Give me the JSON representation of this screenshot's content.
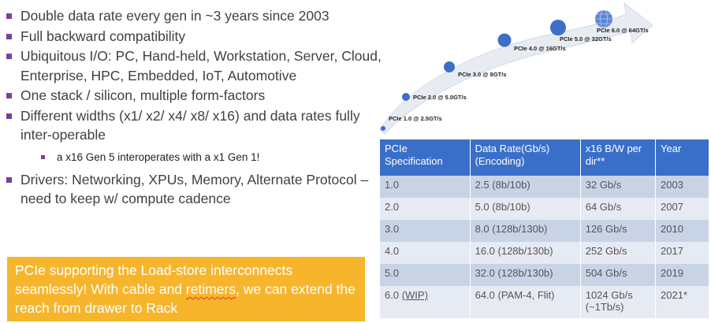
{
  "bullets": [
    "Double data rate every gen in ~3 years since 2003",
    "Full backward compatibility",
    "Ubiquitous I/O: PC, Hand-held, Workstation, Server, Cloud, Enterprise, HPC, Embedded, IoT, Automotive",
    "One stack / silicon, multiple form-factors",
    "Different widths (x1/ x2/ x4/ x8/ x16) and data rates fully inter-operable"
  ],
  "sub_bullet": "a x16 Gen 5 interoperates with a x1 Gen 1!",
  "drivers_bullet": "Drivers: Networking, XPUs, Memory, Alternate Protocol – need to keep w/ compute cadence",
  "callout": {
    "part1": "PCIe supporting the Load-store interconnects seamlessly! With cable and ",
    "squiggle": "retimers",
    "part2": ", we can extend the reach from drawer to Rack"
  },
  "roadmap": {
    "labels": [
      "PCIe 1.0 @ 2.5GT/s",
      "PCIe 2.0 @ 5.0GT/s",
      "PCIe 3.0 @ 8GT/s",
      "PCIe 4.0 @ 16GT/s",
      "PCIe 5.0 @ 32GT/s",
      "PCIe 6.0 @ 64GT/s"
    ],
    "colors": {
      "dot": "#3f6ec6",
      "arrow": "#e7ebf2"
    }
  },
  "table": {
    "headers": [
      "PCIe Specification",
      "Data Rate(Gb/s) (Encoding)",
      "x16 B/W per dir**",
      "Year"
    ],
    "header_color": "#3a6fc9",
    "rows": [
      [
        "1.0",
        "2.5 (8b/10b)",
        "32 Gb/s",
        "2003"
      ],
      [
        "2.0",
        "5.0 (8b/10b)",
        "64 Gb/s",
        "2007"
      ],
      [
        "3.0",
        "8.0 (128b/130b)",
        "126 Gb/s",
        "2010"
      ],
      [
        "4.0",
        "16.0 (128b/130b)",
        "252 Gb/s",
        "2017"
      ],
      [
        "5.0",
        "32.0 (128b/130b)",
        "504 Gb/s",
        "2019"
      ]
    ],
    "last_row": {
      "spec": "6.0",
      "spec_note": "(WIP)",
      "rate": "64.0 (PAM-4, Flit)",
      "bw": "1024 Gb/s (~1Tb/s)",
      "year": "2021*"
    }
  }
}
